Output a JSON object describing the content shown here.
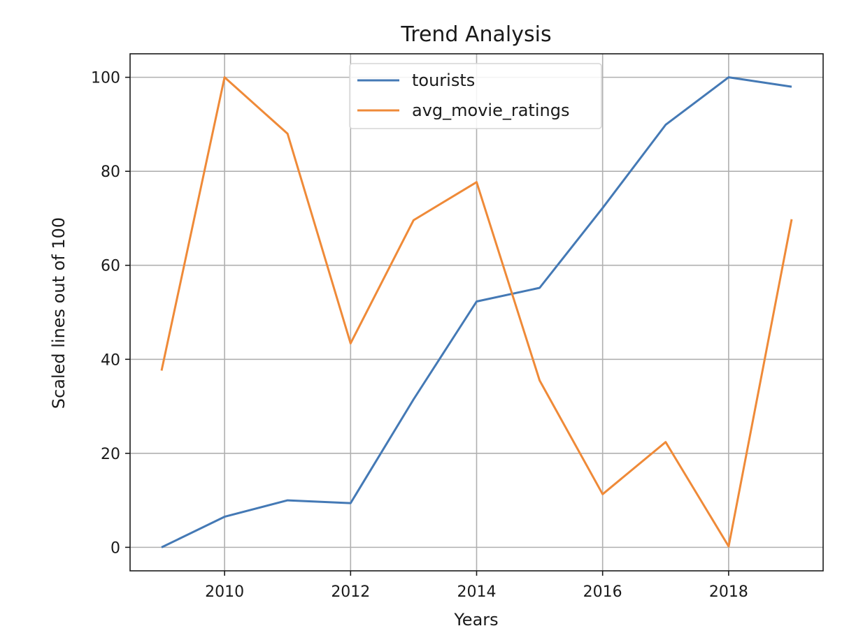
{
  "chart_data": {
    "type": "line",
    "title": "Trend Analysis",
    "xlabel": "Years",
    "ylabel": "Scaled lines out of 100",
    "x": [
      2009,
      2010,
      2011,
      2012,
      2013,
      2014,
      2015,
      2016,
      2017,
      2018,
      2019
    ],
    "series": [
      {
        "name": "tourists",
        "color": "#4479b5",
        "values": [
          0,
          6.5,
          10,
          9.4,
          31.5,
          52.3,
          55.2,
          72.2,
          89.9,
          100,
          98
        ]
      },
      {
        "name": "avg_movie_ratings",
        "color": "#ef8a38",
        "values": [
          37.6,
          100,
          88,
          43.4,
          69.6,
          77.7,
          35.5,
          11.3,
          22.4,
          0.2,
          69.8
        ]
      }
    ],
    "xlim": [
      2008.5,
      2019.5
    ],
    "ylim": [
      -5,
      105
    ],
    "xticks": [
      2010,
      2012,
      2014,
      2016,
      2018
    ],
    "yticks": [
      0,
      20,
      40,
      60,
      80,
      100
    ],
    "grid": true,
    "legend_position": "upper-center"
  }
}
